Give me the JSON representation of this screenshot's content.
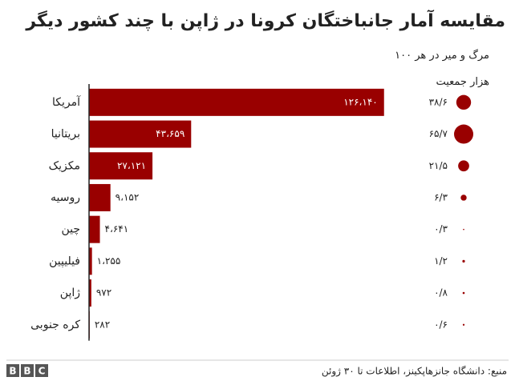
{
  "chart_data": {
    "type": "bar",
    "orientation": "horizontal",
    "title": "مقایسه آمار جانباختگان کرونا در ژاپن با چند کشور دیگر",
    "categories": [
      "آمریکا",
      "بریتانیا",
      "مکزیک",
      "روسیه",
      "چین",
      "فیلیپین",
      "ژاپن",
      "کره جنوبی"
    ],
    "values": [
      126140,
      43659,
      27121,
      9152,
      4641,
      1255,
      972,
      282
    ],
    "value_labels": [
      "۱۲۶،۱۴۰",
      "۴۳،۶۵۹",
      "۲۷،۱۲۱",
      "۹،۱۵۲",
      "۴،۶۴۱",
      "۱،۲۵۵",
      "۹۷۲",
      "۲۸۲"
    ],
    "color": "#990000",
    "xlim": [
      0,
      130000
    ],
    "rate": {
      "title": "مرگ و میر در هر ۱۰۰ هزار جمعیت",
      "values": [
        38.6,
        65.7,
        21.5,
        6.3,
        0.3,
        1.2,
        0.8,
        0.6
      ],
      "value_labels": [
        "۳۸/۶",
        "۶۵/۷",
        "۲۱/۵",
        "۶/۳",
        "۰/۳",
        "۱/۲",
        "۰/۸",
        "۰/۶"
      ],
      "color": "#990000"
    }
  },
  "footer": {
    "source": "منبع: دانشگاه جانزهاپکینز، اطلاعات تا ۳۰ ژوئن",
    "logo": [
      "B",
      "B",
      "C"
    ]
  }
}
